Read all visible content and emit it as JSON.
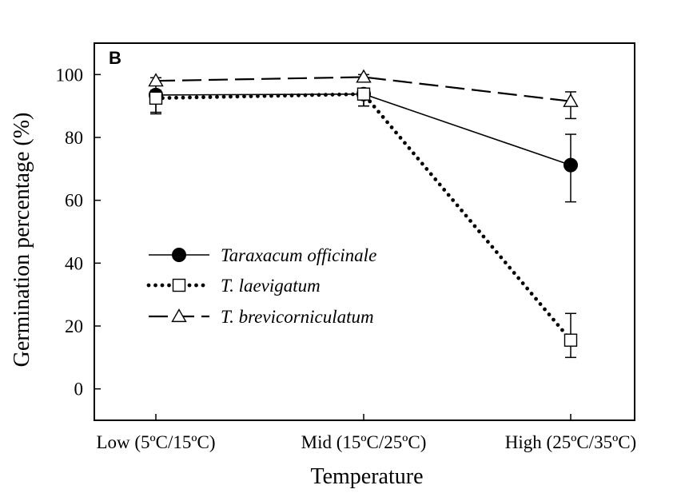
{
  "chart_data": {
    "type": "line",
    "panel_label": "B",
    "xlabel": "Temperature",
    "ylabel": "Germination percentage (%)",
    "categories": [
      "Low (5ºC/15ºC)",
      "Mid (15ºC/25ºC)",
      "High (25ºC/35ºC)"
    ],
    "ylim": [
      -10,
      110
    ],
    "yticks": [
      0,
      20,
      40,
      60,
      80,
      100
    ],
    "grid": false,
    "legend_position": "center-left",
    "series": [
      {
        "name": "Taraxacum officinale",
        "marker": "filled-circle",
        "line_style": "solid",
        "values": [
          93.5,
          93.8,
          71.2
        ],
        "error": [
          [
            88.0,
            96.5
          ],
          [
            90.0,
            95.5
          ],
          [
            59.5,
            81.0
          ]
        ]
      },
      {
        "name": "T. laevigatum",
        "marker": "open-square",
        "line_style": "dotted",
        "values": [
          92.5,
          93.8,
          15.5
        ],
        "error": [
          [
            87.5,
            95.0
          ],
          [
            90.0,
            95.5
          ],
          [
            10.0,
            24.0
          ]
        ]
      },
      {
        "name": "T. brevicorniculatum",
        "marker": "open-triangle",
        "line_style": "dashed",
        "values": [
          98.0,
          99.2,
          91.5
        ],
        "error": [
          [
            97.0,
            99.0
          ],
          [
            98.5,
            100.0
          ],
          [
            86.0,
            94.5
          ]
        ]
      }
    ]
  }
}
